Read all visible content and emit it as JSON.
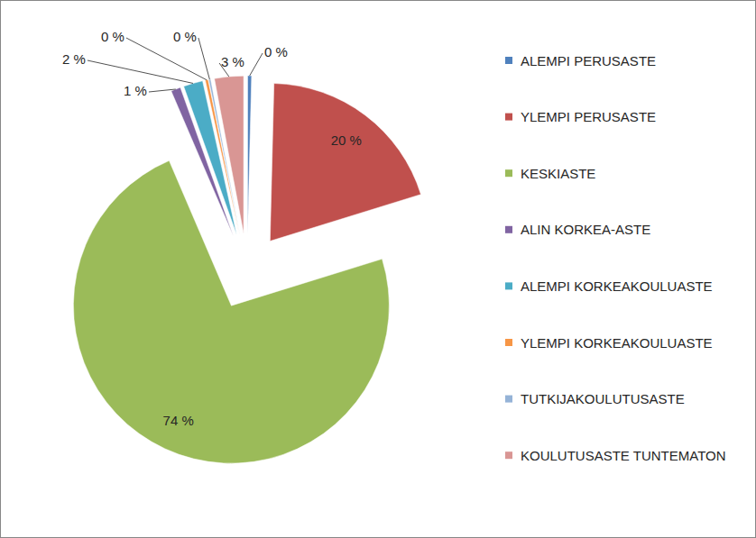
{
  "chart_data": {
    "type": "pie",
    "categories": [
      "ALEMPI PERUSASTE",
      "YLEMPI PERUSASTE",
      "KESKIASTE",
      "ALIN KORKEA-ASTE",
      "ALEMPI KORKEAKOULUASTE",
      "YLEMPI KORKEAKOULUASTE",
      "TUTKIJAKOULUTUSASTE",
      "KOULUTUSASTE TUNTEMATON"
    ],
    "values": [
      0.4,
      20,
      74,
      1,
      2,
      0.3,
      0.2,
      3
    ],
    "value_labels": [
      "0 %",
      "20 %",
      "74 %",
      "1 %",
      "2 %",
      "0 %",
      "0 %",
      "3 %"
    ],
    "colors": [
      "#4f81bd",
      "#c0504d",
      "#9bbb59",
      "#8064a2",
      "#4bacc6",
      "#f79646",
      "#95b3d7",
      "#d99694"
    ],
    "data_labels": true,
    "legend": "right"
  }
}
